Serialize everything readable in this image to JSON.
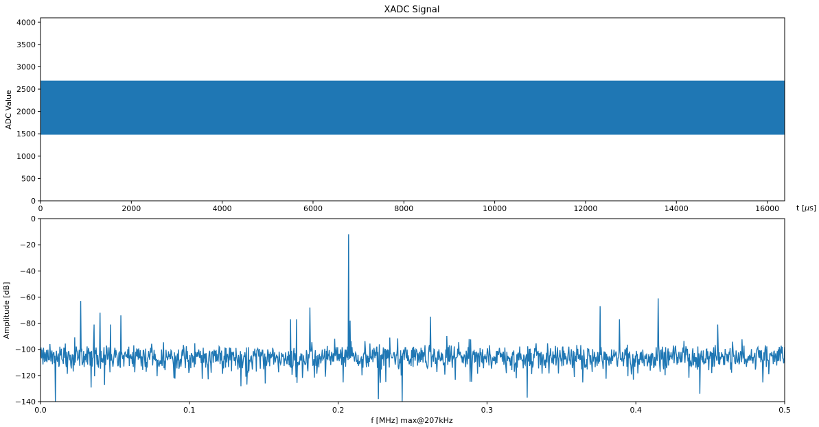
{
  "figure": {
    "background": "#ffffff",
    "line_color": "#1f77b4"
  },
  "chart_data": [
    {
      "type": "area",
      "title": "XADC Signal",
      "xlabel": "t [$\\mu$s]",
      "ylabel": "ADC Value",
      "xlim": [
        0,
        16384
      ],
      "ylim": [
        0,
        4096
      ],
      "x_ticks": [
        0,
        2000,
        4000,
        6000,
        8000,
        10000,
        12000,
        14000,
        16000
      ],
      "y_ticks": [
        0,
        500,
        1000,
        1500,
        2000,
        2500,
        3000,
        3500,
        4000
      ],
      "series": [
        {
          "x_range": [
            0,
            16384
          ],
          "min": 1480,
          "max": 2690,
          "note_shape": "dense oscillation filling the band"
        }
      ],
      "grid": false
    },
    {
      "type": "line",
      "title": "",
      "xlabel": "f [MHz] max@207kHz",
      "ylabel": "Amplitude [dB]",
      "xlim": [
        0,
        0.5
      ],
      "ylim": [
        -140,
        0
      ],
      "x_ticks": [
        0.0,
        0.1,
        0.2,
        0.3,
        0.4,
        0.5
      ],
      "y_ticks": [
        0,
        -20,
        -40,
        -60,
        -80,
        -100,
        -120,
        -140
      ],
      "noise_floor": {
        "mean": -106,
        "min_typical": -122,
        "max_typical": -95
      },
      "peaks": [
        {
          "x": 0.027,
          "y": -63
        },
        {
          "x": 0.036,
          "y": -81
        },
        {
          "x": 0.04,
          "y": -72
        },
        {
          "x": 0.047,
          "y": -81
        },
        {
          "x": 0.054,
          "y": -74
        },
        {
          "x": 0.168,
          "y": -77
        },
        {
          "x": 0.172,
          "y": -77
        },
        {
          "x": 0.181,
          "y": -68
        },
        {
          "x": 0.207,
          "y": -12
        },
        {
          "x": 0.208,
          "y": -78
        },
        {
          "x": 0.262,
          "y": -75
        },
        {
          "x": 0.376,
          "y": -67
        },
        {
          "x": 0.389,
          "y": -77
        },
        {
          "x": 0.415,
          "y": -61
        },
        {
          "x": 0.443,
          "y": -81
        },
        {
          "x": 0.455,
          "y": -81
        }
      ],
      "dips": [
        {
          "x": 0.01,
          "y": -140
        },
        {
          "x": 0.227,
          "y": -138
        },
        {
          "x": 0.243,
          "y": -140
        },
        {
          "x": 0.327,
          "y": -137
        },
        {
          "x": 0.443,
          "y": -134
        }
      ],
      "grid": false
    }
  ]
}
